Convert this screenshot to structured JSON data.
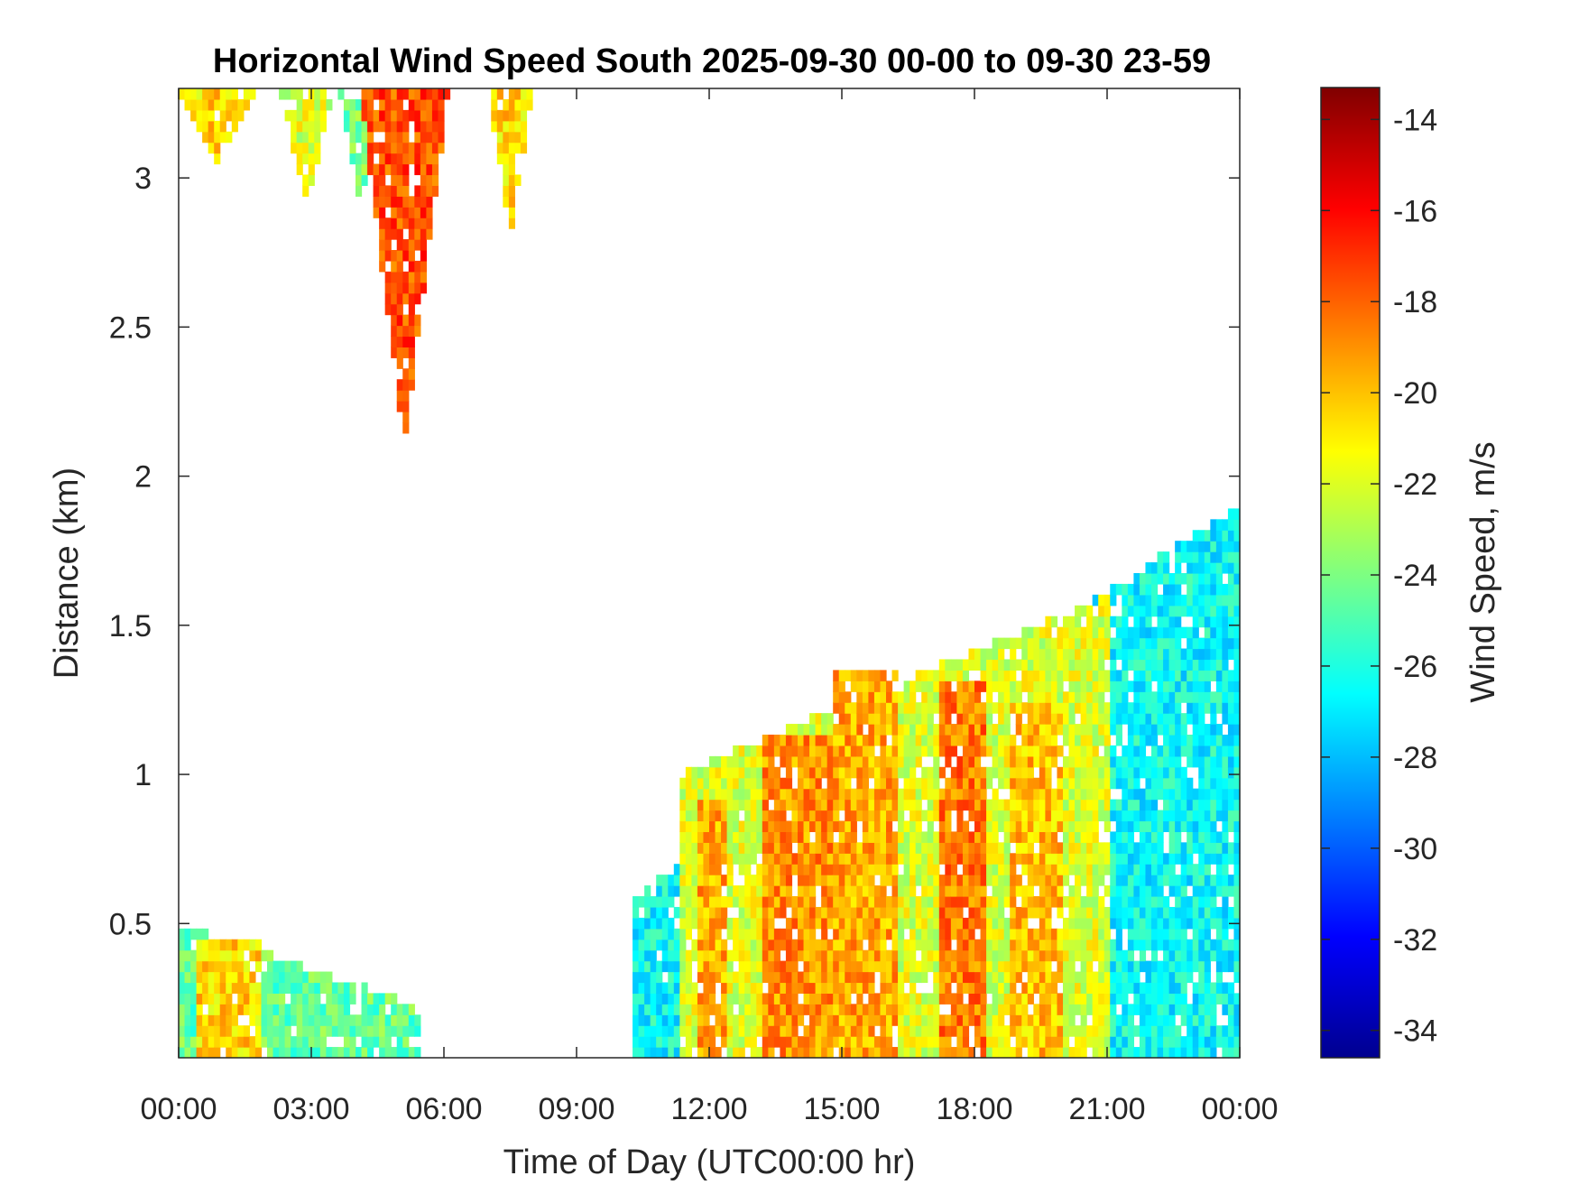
{
  "chart_data": {
    "type": "heatmap",
    "title": "Horizontal Wind Speed South 2025-09-30 00-00 to 09-30 23-59",
    "xlabel": "Time of Day (UTC00:00 hr)",
    "ylabel": "Distance (km)",
    "colorbar_label": "Wind Speed, m/s",
    "colormap": "jet",
    "x_unit": "hours",
    "xlim": [
      0,
      24
    ],
    "ylim": [
      0.05,
      3.3
    ],
    "clim": [
      -34.6,
      -13.3
    ],
    "x_ticks": [
      {
        "value": 0,
        "label": "00:00"
      },
      {
        "value": 3,
        "label": "03:00"
      },
      {
        "value": 6,
        "label": "06:00"
      },
      {
        "value": 9,
        "label": "09:00"
      },
      {
        "value": 12,
        "label": "12:00"
      },
      {
        "value": 15,
        "label": "15:00"
      },
      {
        "value": 18,
        "label": "18:00"
      },
      {
        "value": 21,
        "label": "21:00"
      },
      {
        "value": 24,
        "label": "00:00"
      }
    ],
    "y_ticks": [
      {
        "value": 0.5,
        "label": "0.5"
      },
      {
        "value": 1,
        "label": "1"
      },
      {
        "value": 1.5,
        "label": "1.5"
      },
      {
        "value": 2,
        "label": "2"
      },
      {
        "value": 2.5,
        "label": "2.5"
      },
      {
        "value": 3,
        "label": "3"
      }
    ],
    "colorbar_ticks": [
      {
        "value": -14,
        "label": "-14"
      },
      {
        "value": -16,
        "label": "-16"
      },
      {
        "value": -18,
        "label": "-18"
      },
      {
        "value": -20,
        "label": "-20"
      },
      {
        "value": -22,
        "label": "-22"
      },
      {
        "value": -24,
        "label": "-24"
      },
      {
        "value": -26,
        "label": "-26"
      },
      {
        "value": -28,
        "label": "-28"
      },
      {
        "value": -30,
        "label": "-30"
      },
      {
        "value": -32,
        "label": "-32"
      },
      {
        "value": -34,
        "label": "-34"
      }
    ],
    "regions": [
      {
        "t": [
          0.0,
          5.5
        ],
        "ymax": [
          0.5,
          0.22
        ],
        "v": -24.5
      },
      {
        "t": [
          0.4,
          1.8
        ],
        "ymax": [
          0.45,
          0.45
        ],
        "v": -20.5
      },
      {
        "t": [
          0.0,
          1.8
        ],
        "ytop_start": [
          3.3,
          3.05
        ],
        "v": -20.5
      },
      {
        "t": [
          2.3,
          3.5
        ],
        "ytop_start": [
          3.3,
          2.9
        ],
        "v": -22
      },
      {
        "t": [
          3.6,
          4.6
        ],
        "ytop_start": [
          3.3,
          2.9
        ],
        "v": -24
      },
      {
        "t": [
          4.1,
          6.1
        ],
        "ytop_start": [
          3.3,
          2.1
        ],
        "v": -17.5
      },
      {
        "t": [
          7.0,
          8.0
        ],
        "ytop_start": [
          3.3,
          2.8
        ],
        "v": -20.5
      },
      {
        "t": [
          10.3,
          24.0
        ],
        "ymax": [
          0.6,
          1.9
        ],
        "v": -26.5
      },
      {
        "t": [
          11.3,
          21.0
        ],
        "ymax": [
          1.0,
          1.6
        ],
        "v": -22
      },
      {
        "t": [
          11.8,
          12.4
        ],
        "ymax": [
          0.9,
          0.9
        ],
        "v": -19.5
      },
      {
        "t": [
          13.2,
          14.8
        ],
        "ymax": [
          1.15,
          1.15
        ],
        "v": -19
      },
      {
        "t": [
          14.8,
          16.3
        ],
        "ymax": [
          1.35,
          1.35
        ],
        "v": -19.5
      },
      {
        "t": [
          17.2,
          18.2
        ],
        "ymax": [
          1.3,
          1.3
        ],
        "v": -18.5
      },
      {
        "t": [
          18.8,
          20.0
        ],
        "ymax": [
          1.25,
          1.25
        ],
        "v": -20
      }
    ]
  }
}
